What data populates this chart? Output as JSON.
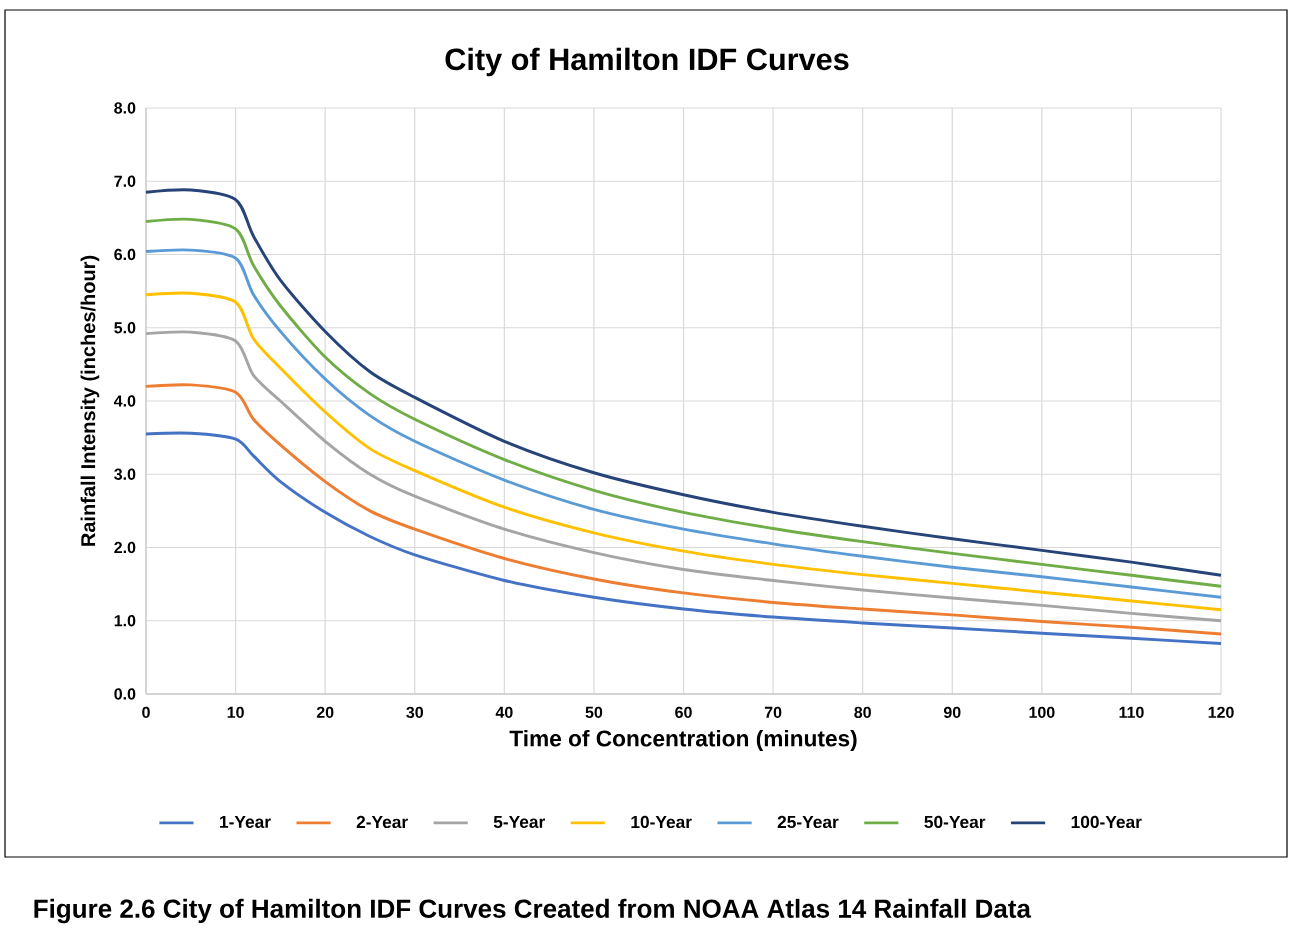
{
  "chart_data": {
    "type": "line",
    "title": "City of Hamilton IDF Curves",
    "xlabel": "Time of Concentration (minutes)",
    "ylabel": "Rainfall Intensity (inches/hour)",
    "annotations": [
      "Figure 2.6  City of Hamilton IDF Curves Created from NOAA Atlas 14 Rainfall Data"
    ],
    "x": [
      0,
      5,
      10,
      12,
      15,
      20,
      25,
      30,
      40,
      50,
      60,
      70,
      80,
      90,
      100,
      110,
      120
    ],
    "series": [
      {
        "name": "1-Year",
        "color": "#4472c4",
        "values": [
          3.55,
          3.56,
          3.48,
          3.25,
          2.9,
          2.48,
          2.15,
          1.9,
          1.55,
          1.32,
          1.16,
          1.05,
          0.97,
          0.9,
          0.83,
          0.76,
          0.69
        ]
      },
      {
        "name": "2-Year",
        "color": "#ed7d31",
        "values": [
          4.2,
          4.22,
          4.12,
          3.75,
          3.4,
          2.9,
          2.5,
          2.25,
          1.85,
          1.57,
          1.38,
          1.25,
          1.16,
          1.08,
          0.99,
          0.91,
          0.82
        ]
      },
      {
        "name": "5-Year",
        "color": "#a5a5a5",
        "values": [
          4.92,
          4.94,
          4.82,
          4.35,
          4.0,
          3.45,
          3.0,
          2.7,
          2.25,
          1.93,
          1.7,
          1.55,
          1.42,
          1.31,
          1.21,
          1.1,
          1.0
        ]
      },
      {
        "name": "10-Year",
        "color": "#ffc000",
        "values": [
          5.45,
          5.47,
          5.35,
          4.85,
          4.45,
          3.85,
          3.35,
          3.05,
          2.55,
          2.2,
          1.95,
          1.77,
          1.63,
          1.51,
          1.39,
          1.27,
          1.15
        ]
      },
      {
        "name": "25-Year",
        "color": "#5b9bd5",
        "values": [
          6.04,
          6.06,
          5.95,
          5.45,
          4.95,
          4.3,
          3.8,
          3.45,
          2.92,
          2.52,
          2.25,
          2.05,
          1.88,
          1.73,
          1.6,
          1.46,
          1.32
        ]
      },
      {
        "name": "50-Year",
        "color": "#70ad47",
        "values": [
          6.45,
          6.48,
          6.35,
          5.85,
          5.3,
          4.6,
          4.1,
          3.75,
          3.2,
          2.78,
          2.48,
          2.26,
          2.08,
          1.92,
          1.77,
          1.62,
          1.47
        ]
      },
      {
        "name": "100-Year",
        "color": "#264478",
        "values": [
          6.85,
          6.88,
          6.75,
          6.25,
          5.65,
          4.95,
          4.4,
          4.05,
          3.45,
          3.02,
          2.72,
          2.48,
          2.29,
          2.12,
          1.96,
          1.8,
          1.62
        ]
      }
    ],
    "xlim": [
      0,
      120
    ],
    "ylim": [
      0,
      8
    ],
    "xticks": [
      0,
      10,
      20,
      30,
      40,
      50,
      60,
      70,
      80,
      90,
      100,
      110,
      120
    ],
    "yticks": [
      {
        "value": 0,
        "label": "0.0"
      },
      {
        "value": 1,
        "label": "1.0"
      },
      {
        "value": 2,
        "label": "2.0"
      },
      {
        "value": 3,
        "label": "3.0"
      },
      {
        "value": 4,
        "label": "4.0"
      },
      {
        "value": 5,
        "label": "5.0"
      },
      {
        "value": 6,
        "label": "6.0"
      },
      {
        "value": 7,
        "label": "7.0"
      },
      {
        "value": 8,
        "label": "8.0"
      }
    ],
    "grid": true,
    "legend": "bottom",
    "line_style": "solid"
  }
}
